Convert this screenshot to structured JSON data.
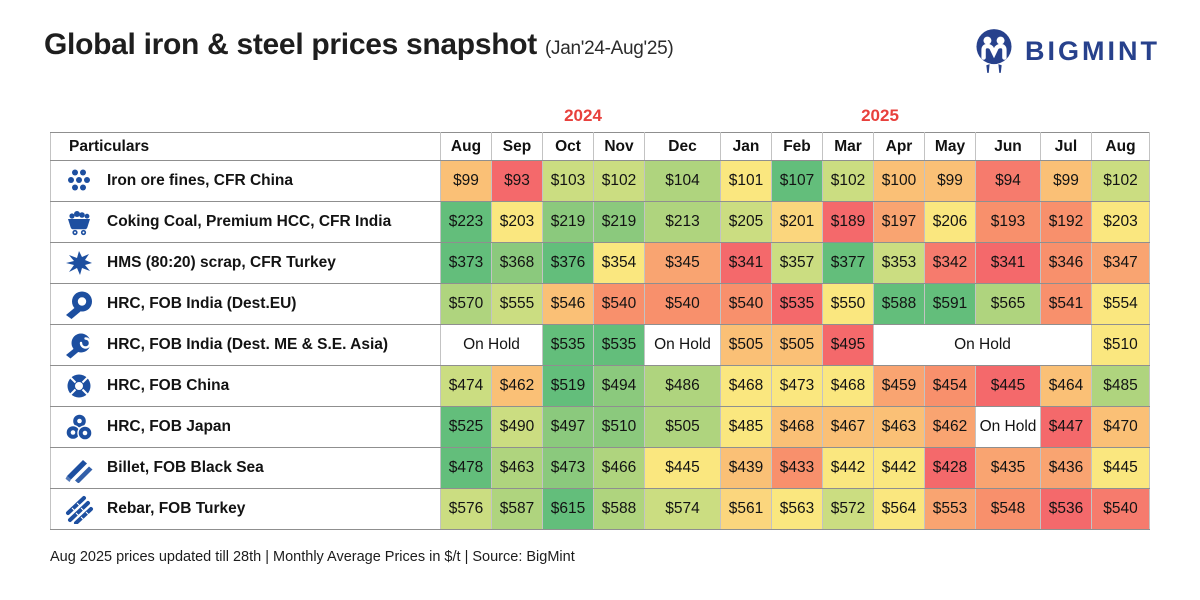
{
  "header": {
    "title": "Global iron & steel prices snapshot",
    "subtitle": "(Jan'24-Aug'25)",
    "brand": "BIGMINT"
  },
  "table": {
    "year_labels": [
      {
        "label": "2024"
      },
      {
        "label": "2025"
      }
    ],
    "particulars_header": "Particulars",
    "months": [
      "Aug",
      "Sep",
      "Oct",
      "Nov",
      "Dec",
      "Jan",
      "Feb",
      "Mar",
      "Apr",
      "May",
      "Jun",
      "Jul",
      "Aug"
    ],
    "rows": [
      {
        "icon": "iron-ore-fines-icon",
        "label": "Iron ore fines, CFR China",
        "cells": [
          {
            "v": "$99",
            "c": "O1"
          },
          {
            "v": "$93",
            "c": "R1"
          },
          {
            "v": "$103",
            "c": "G4"
          },
          {
            "v": "$102",
            "c": "G4"
          },
          {
            "v": "$104",
            "c": "G3"
          },
          {
            "v": "$101",
            "c": "Y1"
          },
          {
            "v": "$107",
            "c": "G1"
          },
          {
            "v": "$102",
            "c": "G4"
          },
          {
            "v": "$100",
            "c": "O1"
          },
          {
            "v": "$99",
            "c": "O1"
          },
          {
            "v": "$94",
            "c": "R2"
          },
          {
            "v": "$99",
            "c": "O1"
          },
          {
            "v": "$102",
            "c": "G4"
          }
        ]
      },
      {
        "icon": "coking-coal-cart-icon",
        "label": "Coking Coal, Premium HCC, CFR India",
        "cells": [
          {
            "v": "$223",
            "c": "G1"
          },
          {
            "v": "$203",
            "c": "Y1"
          },
          {
            "v": "$219",
            "c": "G2"
          },
          {
            "v": "$219",
            "c": "G2"
          },
          {
            "v": "$213",
            "c": "G3"
          },
          {
            "v": "$205",
            "c": "G4"
          },
          {
            "v": "$201",
            "c": "Y2"
          },
          {
            "v": "$189",
            "c": "R1"
          },
          {
            "v": "$197",
            "c": "O2"
          },
          {
            "v": "$206",
            "c": "Y1"
          },
          {
            "v": "$193",
            "c": "S1"
          },
          {
            "v": "$192",
            "c": "S1"
          },
          {
            "v": "$203",
            "c": "Y1"
          }
        ]
      },
      {
        "icon": "scrap-metal-icon",
        "label": "HMS (80:20) scrap, CFR Turkey",
        "cells": [
          {
            "v": "$373",
            "c": "G1"
          },
          {
            "v": "$368",
            "c": "G2"
          },
          {
            "v": "$376",
            "c": "G1"
          },
          {
            "v": "$354",
            "c": "Y1"
          },
          {
            "v": "$345",
            "c": "O2"
          },
          {
            "v": "$341",
            "c": "R1"
          },
          {
            "v": "$357",
            "c": "G4"
          },
          {
            "v": "$377",
            "c": "G1"
          },
          {
            "v": "$353",
            "c": "G4"
          },
          {
            "v": "$342",
            "c": "R2"
          },
          {
            "v": "$341",
            "c": "R1"
          },
          {
            "v": "$346",
            "c": "S1"
          },
          {
            "v": "$347",
            "c": "O2"
          }
        ]
      },
      {
        "icon": "hrc-coil-icon",
        "label": "HRC, FOB India (Dest.EU)",
        "cells": [
          {
            "v": "$570",
            "c": "G3"
          },
          {
            "v": "$555",
            "c": "G4"
          },
          {
            "v": "$546",
            "c": "O1"
          },
          {
            "v": "$540",
            "c": "S1"
          },
          {
            "v": "$540",
            "c": "S1"
          },
          {
            "v": "$540",
            "c": "S1"
          },
          {
            "v": "$535",
            "c": "R1"
          },
          {
            "v": "$550",
            "c": "Y1"
          },
          {
            "v": "$588",
            "c": "G1"
          },
          {
            "v": "$591",
            "c": "G1"
          },
          {
            "v": "$565",
            "c": "G3"
          },
          {
            "v": "$541",
            "c": "S1"
          },
          {
            "v": "$554",
            "c": "Y1"
          }
        ]
      },
      {
        "icon": "hrc-coil-swirl-icon",
        "label": "HRC, FOB India (Dest. ME & S.E. Asia)",
        "cells": [
          {
            "v": "On Hold",
            "c": "W",
            "span": 2
          },
          {
            "v": "$535",
            "c": "G1"
          },
          {
            "v": "$535",
            "c": "G1"
          },
          {
            "v": "On Hold",
            "c": "W"
          },
          {
            "v": "$505",
            "c": "O1"
          },
          {
            "v": "$505",
            "c": "O1"
          },
          {
            "v": "$495",
            "c": "R1"
          },
          {
            "v": "On Hold",
            "c": "W",
            "span": 4
          },
          {
            "v": "$510",
            "c": "Y1"
          }
        ]
      },
      {
        "icon": "hrc-coil-top-icon",
        "label": "HRC, FOB China",
        "cells": [
          {
            "v": "$474",
            "c": "G4"
          },
          {
            "v": "$462",
            "c": "O1"
          },
          {
            "v": "$519",
            "c": "G1"
          },
          {
            "v": "$494",
            "c": "G2"
          },
          {
            "v": "$486",
            "c": "G3"
          },
          {
            "v": "$468",
            "c": "Y1"
          },
          {
            "v": "$473",
            "c": "Y1"
          },
          {
            "v": "$468",
            "c": "Y1"
          },
          {
            "v": "$459",
            "c": "O2"
          },
          {
            "v": "$454",
            "c": "S1"
          },
          {
            "v": "$445",
            "c": "R1"
          },
          {
            "v": "$464",
            "c": "O1"
          },
          {
            "v": "$485",
            "c": "G3"
          }
        ]
      },
      {
        "icon": "hrc-coils-stack-icon",
        "label": "HRC, FOB Japan",
        "cells": [
          {
            "v": "$525",
            "c": "G1"
          },
          {
            "v": "$490",
            "c": "G4"
          },
          {
            "v": "$497",
            "c": "G2"
          },
          {
            "v": "$510",
            "c": "G2"
          },
          {
            "v": "$505",
            "c": "G3"
          },
          {
            "v": "$485",
            "c": "Y1"
          },
          {
            "v": "$468",
            "c": "O1"
          },
          {
            "v": "$467",
            "c": "O1"
          },
          {
            "v": "$463",
            "c": "O1"
          },
          {
            "v": "$462",
            "c": "O2"
          },
          {
            "v": "On Hold",
            "c": "W"
          },
          {
            "v": "$447",
            "c": "R1"
          },
          {
            "v": "$470",
            "c": "O1"
          }
        ]
      },
      {
        "icon": "billet-bars-icon",
        "label": "Billet, FOB Black Sea",
        "cells": [
          {
            "v": "$478",
            "c": "G1"
          },
          {
            "v": "$463",
            "c": "G3"
          },
          {
            "v": "$473",
            "c": "G2"
          },
          {
            "v": "$466",
            "c": "G3"
          },
          {
            "v": "$445",
            "c": "Y1"
          },
          {
            "v": "$439",
            "c": "O1"
          },
          {
            "v": "$433",
            "c": "S1"
          },
          {
            "v": "$442",
            "c": "Y1"
          },
          {
            "v": "$442",
            "c": "Y1"
          },
          {
            "v": "$428",
            "c": "R1"
          },
          {
            "v": "$435",
            "c": "O2"
          },
          {
            "v": "$436",
            "c": "O2"
          },
          {
            "v": "$445",
            "c": "Y1"
          }
        ]
      },
      {
        "icon": "rebar-rods-icon",
        "label": "Rebar, FOB Turkey",
        "cells": [
          {
            "v": "$576",
            "c": "G4"
          },
          {
            "v": "$587",
            "c": "G3"
          },
          {
            "v": "$615",
            "c": "G1"
          },
          {
            "v": "$588",
            "c": "G3"
          },
          {
            "v": "$574",
            "c": "G4"
          },
          {
            "v": "$561",
            "c": "Y2"
          },
          {
            "v": "$563",
            "c": "Y1"
          },
          {
            "v": "$572",
            "c": "G4"
          },
          {
            "v": "$564",
            "c": "Y1"
          },
          {
            "v": "$553",
            "c": "O2"
          },
          {
            "v": "$548",
            "c": "S1"
          },
          {
            "v": "$536",
            "c": "R1"
          },
          {
            "v": "$540",
            "c": "R2"
          }
        ]
      }
    ]
  },
  "palette": {
    "G1": "#63BE7B",
    "G2": "#8BC97D",
    "G3": "#AFD47E",
    "G4": "#CBDD81",
    "Y1": "#FAE77F",
    "Y2": "#FBD67D",
    "O1": "#FAC076",
    "O2": "#F9A471",
    "S1": "#F8906C",
    "R2": "#F67B6D",
    "R1": "#F4696B",
    "W": "#FFFFFF"
  },
  "accent": {
    "year_red": "#E8403C",
    "brand_navy": "#27418C",
    "icon_blue": "#1D4FA0"
  },
  "footer": {
    "note": "Aug 2025 prices updated till 28th  |  Monthly Average Prices in $/t  |  Source: BigMint"
  },
  "chart_data": {
    "type": "table",
    "title": "Global iron & steel prices snapshot (Jan'24-Aug'25)",
    "unit": "$/t (monthly average)",
    "columns": [
      "Aug'24",
      "Sep'24",
      "Oct'24",
      "Nov'24",
      "Dec'24",
      "Jan'25",
      "Feb'25",
      "Mar'25",
      "Apr'25",
      "May'25",
      "Jun'25",
      "Jul'25",
      "Aug'25"
    ],
    "series": [
      {
        "name": "Iron ore fines, CFR China",
        "values": [
          99,
          93,
          103,
          102,
          104,
          101,
          107,
          102,
          100,
          99,
          94,
          99,
          102
        ]
      },
      {
        "name": "Coking Coal, Premium HCC, CFR India",
        "values": [
          223,
          203,
          219,
          219,
          213,
          205,
          201,
          189,
          197,
          206,
          193,
          192,
          203
        ]
      },
      {
        "name": "HMS (80:20) scrap, CFR Turkey",
        "values": [
          373,
          368,
          376,
          354,
          345,
          341,
          357,
          377,
          353,
          342,
          341,
          346,
          347
        ]
      },
      {
        "name": "HRC, FOB India (Dest.EU)",
        "values": [
          570,
          555,
          546,
          540,
          540,
          540,
          535,
          550,
          588,
          591,
          565,
          541,
          554
        ]
      },
      {
        "name": "HRC, FOB India (Dest. ME & S.E. Asia)",
        "values": [
          null,
          null,
          535,
          535,
          null,
          505,
          505,
          495,
          null,
          null,
          null,
          null,
          510
        ],
        "on_hold_months": [
          "Aug'24",
          "Sep'24",
          "Dec'24",
          "Apr'25",
          "May'25",
          "Jun'25",
          "Jul'25"
        ]
      },
      {
        "name": "HRC, FOB China",
        "values": [
          474,
          462,
          519,
          494,
          486,
          468,
          473,
          468,
          459,
          454,
          445,
          464,
          485
        ]
      },
      {
        "name": "HRC, FOB Japan",
        "values": [
          525,
          490,
          497,
          510,
          505,
          485,
          468,
          467,
          463,
          462,
          null,
          447,
          470
        ],
        "on_hold_months": [
          "Jun'25"
        ]
      },
      {
        "name": "Billet, FOB Black Sea",
        "values": [
          478,
          463,
          473,
          466,
          445,
          439,
          433,
          442,
          442,
          428,
          435,
          436,
          445
        ]
      },
      {
        "name": "Rebar, FOB Turkey",
        "values": [
          576,
          587,
          615,
          588,
          574,
          561,
          563,
          572,
          564,
          553,
          548,
          536,
          540
        ]
      }
    ],
    "color_coding": "green = higher price in row range, yellow/orange = mid, red = lowest"
  }
}
